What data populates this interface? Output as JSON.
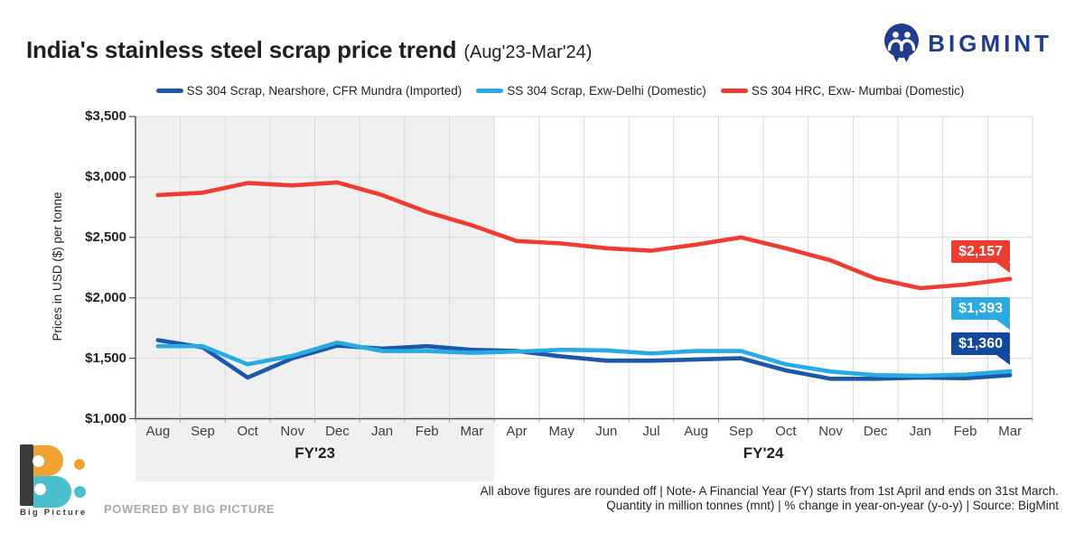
{
  "header": {
    "title": "India's stainless steel scrap price trend",
    "subtitle": "(Aug'23-Mar'24)",
    "brand": "BIGMINT"
  },
  "chart_data": {
    "type": "line",
    "title": "India's stainless steel scrap price trend (Aug'23-Mar'24)",
    "ylabel": "Prices in USD ($) per tonne",
    "ylim": [
      1000,
      3500
    ],
    "ytick_step": 500,
    "ytick_labels": [
      "$3,500",
      "$3,000",
      "$2,500",
      "$2,000",
      "$1,500",
      "$1,000"
    ],
    "grid": true,
    "legend_position": "top",
    "categories": [
      "Aug",
      "Sep",
      "Oct",
      "Nov",
      "Dec",
      "Jan",
      "Feb",
      "Mar",
      "Apr",
      "May",
      "Jun",
      "Jul",
      "Aug",
      "Sep",
      "Oct",
      "Nov",
      "Dec",
      "Jan",
      "Feb",
      "Mar"
    ],
    "fiscal_groups": [
      {
        "label": "FY'23",
        "start": 0,
        "end": 7,
        "shaded": true
      },
      {
        "label": "FY'24",
        "start": 8,
        "end": 19,
        "shaded": false
      }
    ],
    "series": [
      {
        "name": "SS 304 Scrap, Nearshore, CFR Mundra (Imported)",
        "color": "#1b58a8",
        "label_bg": "#12499e",
        "end_label": "$1,360",
        "values": [
          1650,
          1590,
          1340,
          1500,
          1605,
          1580,
          1600,
          1570,
          1560,
          1515,
          1480,
          1480,
          1490,
          1500,
          1400,
          1330,
          1330,
          1340,
          1335,
          1360
        ]
      },
      {
        "name": "SS 304 Scrap, Exw-Delhi (Domestic)",
        "color": "#29abe2",
        "label_bg": "#29abe2",
        "end_label": "$1,393",
        "values": [
          1600,
          1600,
          1450,
          1520,
          1630,
          1560,
          1560,
          1545,
          1555,
          1570,
          1565,
          1540,
          1560,
          1560,
          1450,
          1390,
          1360,
          1355,
          1365,
          1393
        ]
      },
      {
        "name": "SS 304 HRC, Exw- Mumbai (Domestic)",
        "color": "#ee3c30",
        "label_bg": "#ee3c30",
        "end_label": "$2,157",
        "values": [
          2850,
          2870,
          2950,
          2930,
          2955,
          2850,
          2710,
          2600,
          2470,
          2450,
          2410,
          2390,
          2440,
          2500,
          2410,
          2310,
          2160,
          2080,
          2110,
          2157
        ]
      }
    ]
  },
  "footer": {
    "line1": "All above figures are rounded off  |  Note- A Financial Year (FY) starts from 1st April and ends on 31st March.",
    "line2": "Quantity in million tonnes (mnt)  |  % change in year-on-year (y-o-y)  |  Source: BigMint",
    "powered_by": "POWERED BY BIG PICTURE",
    "logo_text": "Big Picture"
  }
}
